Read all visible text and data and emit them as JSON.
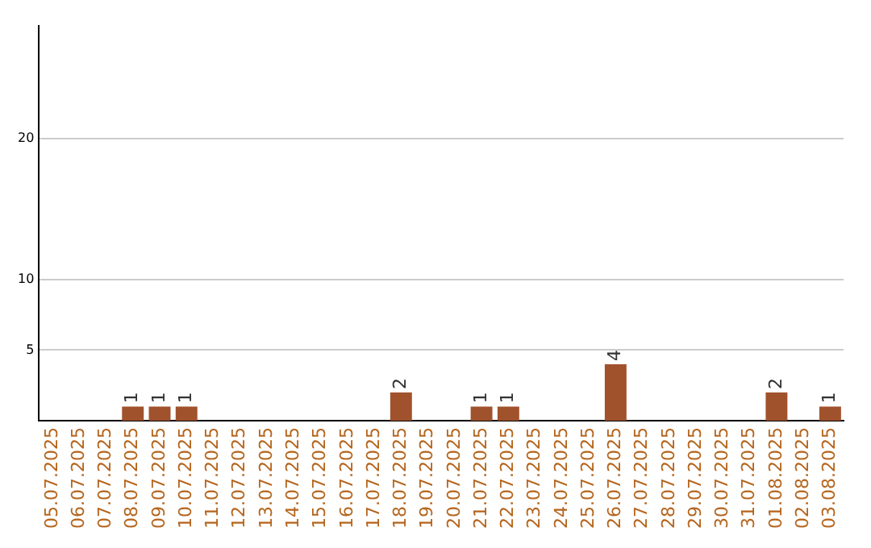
{
  "chart_data": {
    "type": "bar",
    "categories": [
      "05.07.2025",
      "06.07.2025",
      "07.07.2025",
      "08.07.2025",
      "09.07.2025",
      "10.07.2025",
      "11.07.2025",
      "12.07.2025",
      "13.07.2025",
      "14.07.2025",
      "15.07.2025",
      "16.07.2025",
      "17.07.2025",
      "18.07.2025",
      "19.07.2025",
      "20.07.2025",
      "21.07.2025",
      "22.07.2025",
      "23.07.2025",
      "24.07.2025",
      "25.07.2025",
      "26.07.2025",
      "27.07.2025",
      "28.07.2025",
      "29.07.2025",
      "30.07.2025",
      "31.07.2025",
      "01.08.2025",
      "02.08.2025",
      "03.08.2025"
    ],
    "values": [
      0,
      0,
      0,
      1,
      1,
      1,
      0,
      0,
      0,
      0,
      0,
      0,
      0,
      2,
      0,
      0,
      1,
      1,
      0,
      0,
      0,
      4,
      0,
      0,
      0,
      0,
      0,
      2,
      0,
      1
    ],
    "value_labels": [
      null,
      null,
      null,
      "1",
      "1",
      "1",
      null,
      null,
      null,
      null,
      null,
      null,
      null,
      "2",
      null,
      null,
      "1",
      "1",
      null,
      null,
      null,
      "4",
      null,
      null,
      null,
      null,
      null,
      "2",
      null,
      "1"
    ],
    "color": "#a0522d",
    "ylim": [
      0,
      28
    ],
    "yticks": [
      5,
      10,
      20
    ],
    "grid": "y"
  }
}
